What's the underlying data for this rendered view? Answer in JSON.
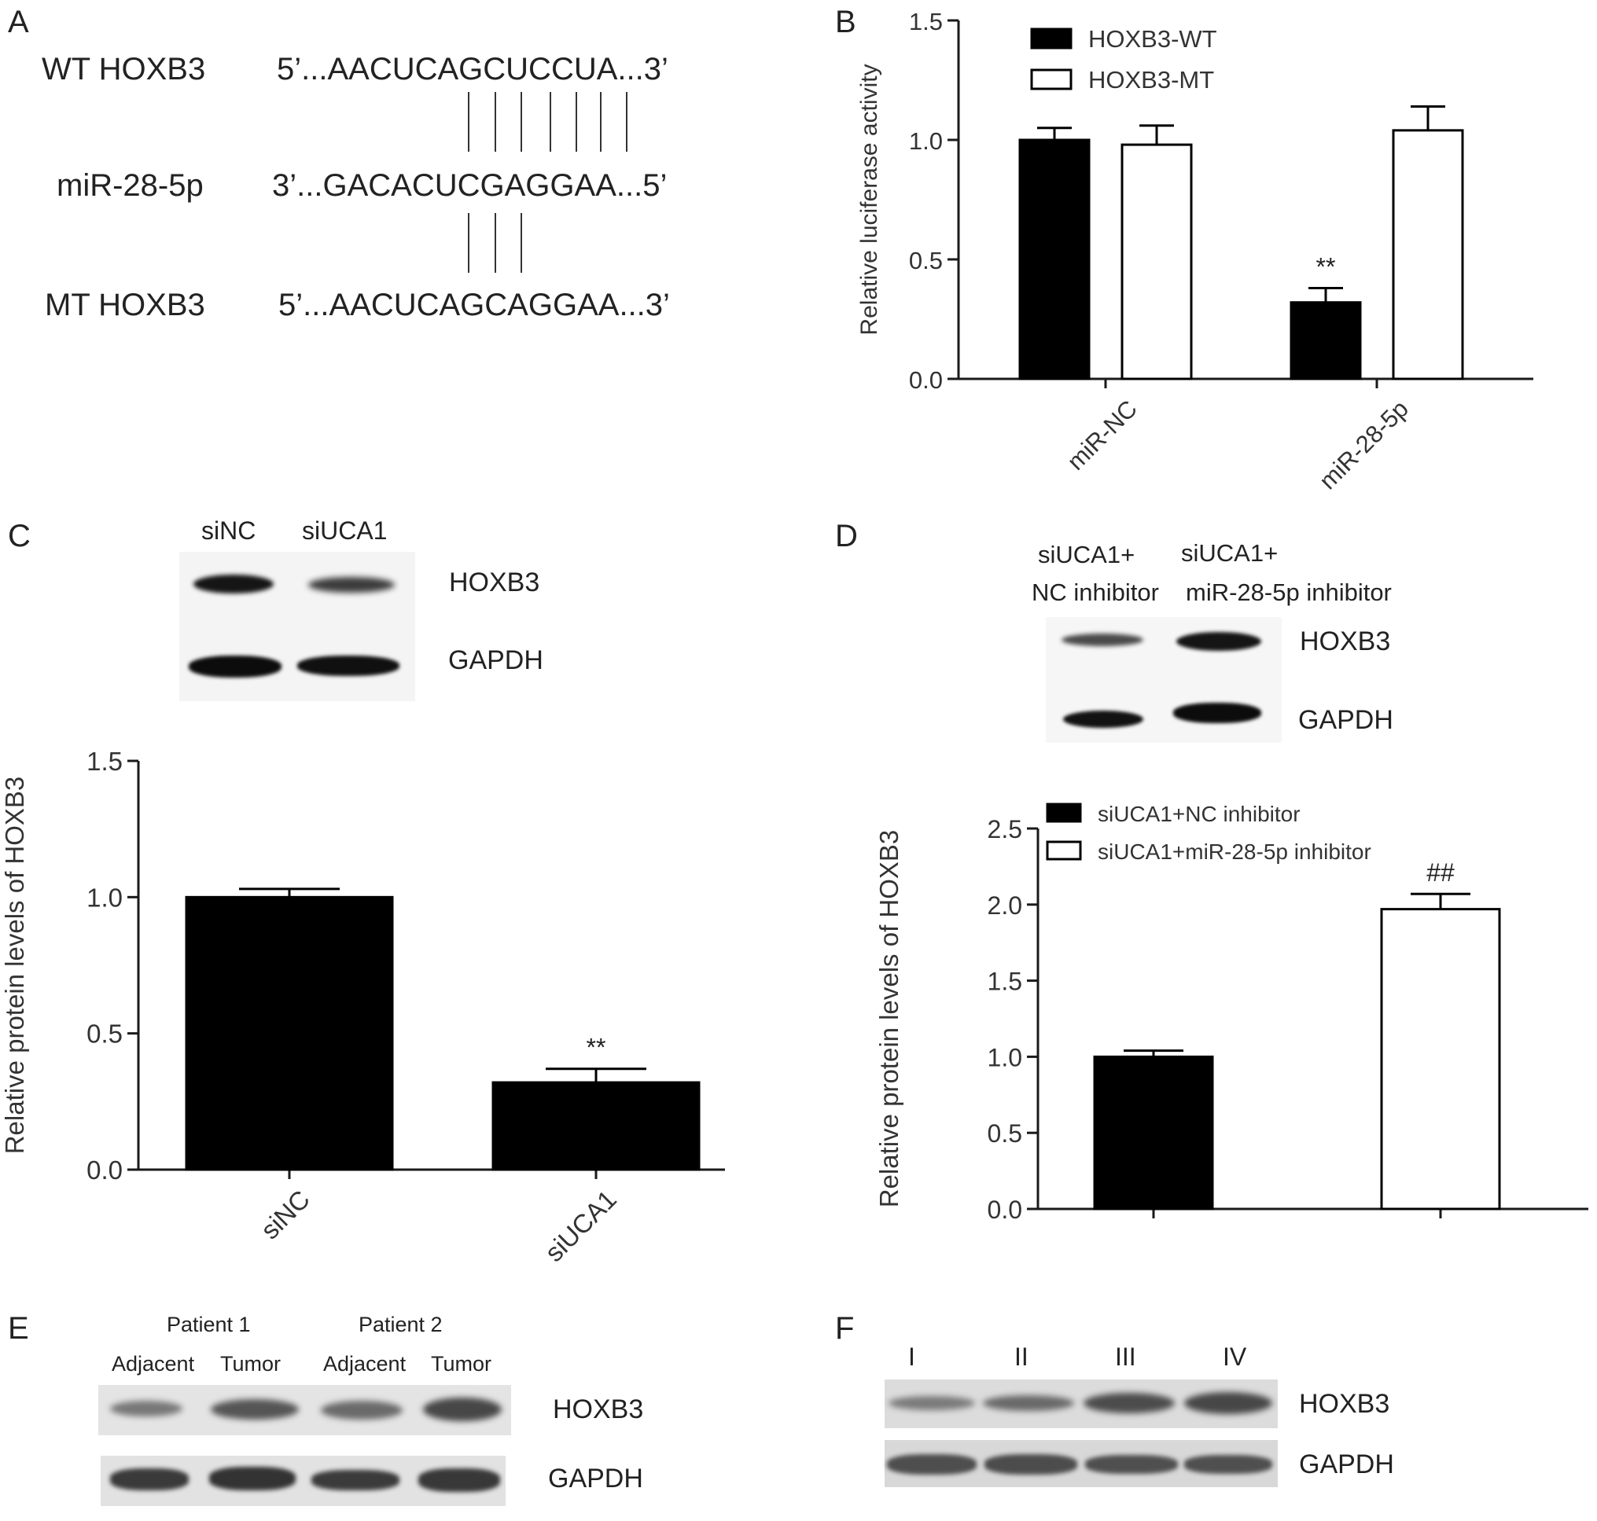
{
  "panels": {
    "A": {
      "label": "A",
      "rows": [
        {
          "name": "WT HOXB3",
          "seq": "5’...AACUCAGCUCCUA...3’"
        },
        {
          "name": "miR-28-5p",
          "seq": "3’...GACACUCGAGGAA...5’"
        },
        {
          "name": "MT HOXB3",
          "seq": "5’...AACUCAGCAGGAA...3’"
        }
      ],
      "top_pairing_lines": 7,
      "bottom_pairing_lines": 3
    },
    "C": {
      "label": "C",
      "blot": {
        "lanes": [
          "siNC",
          "siUCA1"
        ],
        "proteins": [
          "HOXB3",
          "GAPDH"
        ],
        "intensity": {
          "HOXB3": [
            0.9,
            0.5
          ],
          "GAPDH": [
            1.0,
            1.0
          ]
        }
      }
    },
    "D": {
      "label": "D",
      "blot": {
        "lanes_line1": [
          "siUCA1+",
          "siUCA1+"
        ],
        "lanes_line2": [
          "NC inhibitor",
          "miR-28-5p inhibitor"
        ],
        "proteins": [
          "HOXB3",
          "GAPDH"
        ],
        "intensity": {
          "HOXB3": [
            0.6,
            0.95
          ],
          "GAPDH": [
            0.95,
            1.0
          ]
        }
      }
    },
    "E": {
      "label": "E",
      "patients": [
        "Patient 1",
        "Patient 2"
      ],
      "lanes": [
        "Adjacent",
        "Tumor",
        "Adjacent",
        "Tumor"
      ],
      "proteins": [
        "HOXB3",
        "GAPDH"
      ],
      "intensity": {
        "HOXB3": [
          0.5,
          0.75,
          0.6,
          0.85
        ],
        "GAPDH": [
          0.85,
          0.9,
          0.85,
          0.85
        ]
      }
    },
    "F": {
      "label": "F",
      "lanes": [
        "I",
        "II",
        "III",
        "IV"
      ],
      "proteins": [
        "HOXB3",
        "GAPDH"
      ],
      "intensity": {
        "HOXB3": [
          0.45,
          0.55,
          0.75,
          0.8
        ],
        "GAPDH": [
          0.75,
          0.75,
          0.75,
          0.75
        ]
      }
    }
  },
  "colors": {
    "black": "#000000",
    "white": "#ffffff",
    "axis": "#1a1a1a",
    "text": "#222222"
  },
  "chart_data": [
    {
      "id": "B",
      "panel_label": "B",
      "type": "bar",
      "categories": [
        "miR-NC",
        "miR-28-5p"
      ],
      "series": [
        {
          "name": "HOXB3-WT",
          "fill": "#000000",
          "values": [
            1.0,
            0.32
          ],
          "errors": [
            0.05,
            0.06
          ],
          "annotations": [
            "",
            "**"
          ]
        },
        {
          "name": "HOXB3-MT",
          "fill": "#ffffff",
          "values": [
            0.98,
            1.04
          ],
          "errors": [
            0.08,
            0.1
          ],
          "annotations": [
            "",
            ""
          ]
        }
      ],
      "ylabel": "Relative luciferase activity",
      "xlabel": "",
      "ylim": [
        0,
        1.5
      ],
      "yticks": [
        "0.0",
        "0.5",
        "1.0",
        "1.5"
      ],
      "legend": "top-left",
      "grid": false
    },
    {
      "id": "C",
      "panel_label": "",
      "type": "bar",
      "categories": [
        "siNC",
        "siUCA1"
      ],
      "series": [
        {
          "name": "",
          "fill": "#000000",
          "values": [
            1.0,
            0.32
          ],
          "errors": [
            0.03,
            0.05
          ],
          "annotations": [
            "",
            "**"
          ]
        }
      ],
      "ylabel": "Relative protein levels of HOXB3",
      "xlabel": "",
      "ylim": [
        0,
        1.5
      ],
      "yticks": [
        "0.0",
        "0.5",
        "1.0",
        "1.5"
      ],
      "grid": false
    },
    {
      "id": "D",
      "panel_label": "",
      "type": "bar",
      "categories": [
        "",
        ""
      ],
      "series": [
        {
          "name": "siUCA1+NC inhibitor",
          "fill": "#000000",
          "values": [
            1.0,
            null
          ],
          "errors": [
            0.04,
            null
          ],
          "annotations": [
            "",
            ""
          ]
        },
        {
          "name": "siUCA1+miR-28-5p inhibitor",
          "fill": "#ffffff",
          "values": [
            null,
            1.97
          ],
          "errors": [
            null,
            0.1
          ],
          "annotations": [
            "",
            "##"
          ]
        }
      ],
      "ylabel": "Relative protein levels of HOXB3",
      "xlabel": "",
      "ylim": [
        0,
        2.5
      ],
      "yticks": [
        "0.0",
        "0.5",
        "1.0",
        "1.5",
        "2.0",
        "2.5"
      ],
      "legend": "top-left",
      "grid": false
    }
  ]
}
